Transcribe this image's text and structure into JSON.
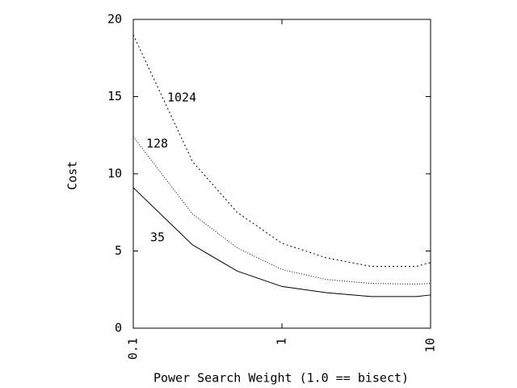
{
  "chart_data": {
    "type": "line",
    "x_label": "Power Search Weight (1.0 == bisect)",
    "y_label": "Cost",
    "x": [
      0.1,
      0.25,
      0.5,
      1,
      2,
      4,
      8,
      10
    ],
    "series": [
      {
        "name": "35",
        "color": "#000000",
        "dash": "none",
        "values": [
          9.1,
          5.4,
          3.7,
          2.7,
          2.3,
          2.05,
          2.05,
          2.15
        ]
      },
      {
        "name": "128",
        "color": "#000000",
        "dash": "1,2",
        "values": [
          12.4,
          7.4,
          5.2,
          3.8,
          3.15,
          2.9,
          2.85,
          2.9
        ]
      },
      {
        "name": "1024",
        "color": "#000000",
        "dash": "2,3",
        "values": [
          19.0,
          10.8,
          7.5,
          5.5,
          4.55,
          4.0,
          4.0,
          4.25
        ]
      }
    ],
    "xlog": true,
    "xlim": [
      0.1,
      10
    ],
    "xticks": [
      0.1,
      1,
      10
    ],
    "ylim": [
      0,
      20
    ],
    "yticks": [
      0,
      5,
      10,
      15,
      20
    ]
  }
}
